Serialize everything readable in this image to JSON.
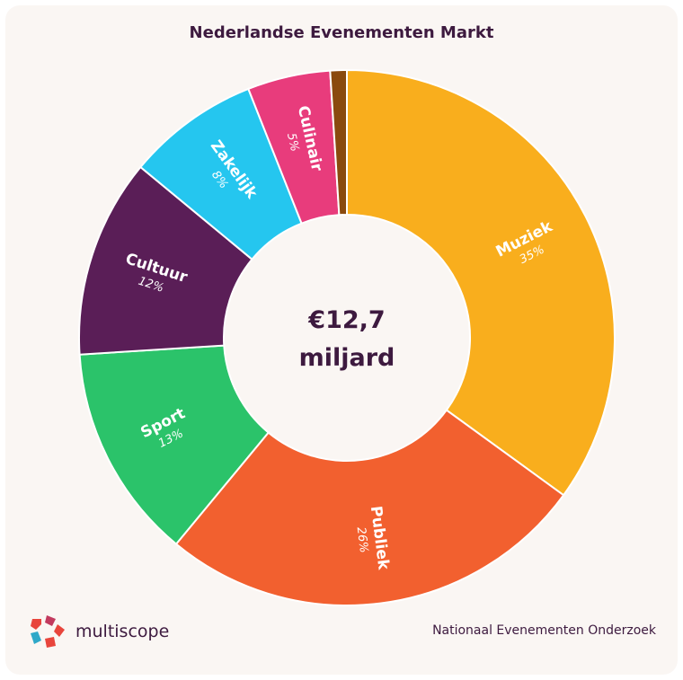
{
  "chart_data": {
    "type": "pie",
    "title": "Nederlandse Evenementen Markt",
    "center_label_lines": [
      "€12,7",
      "miljard"
    ],
    "slices": [
      {
        "label": "Muziek",
        "pct_label": "35%",
        "value": 35.0,
        "color": "#f9ae1d"
      },
      {
        "label": "Publiek",
        "pct_label": "26%",
        "value": 26.0,
        "color": "#f2602f"
      },
      {
        "label": "Sport",
        "pct_label": "13%",
        "value": 13.0,
        "color": "#2bc36a"
      },
      {
        "label": "Cultuur",
        "pct_label": "12%",
        "value": 12.0,
        "color": "#5a1e57"
      },
      {
        "label": "Zakelijk",
        "pct_label": "8%",
        "value": 8.0,
        "color": "#25c6ef"
      },
      {
        "label": "Culinair",
        "pct_label": "5%",
        "value": 5.0,
        "color": "#e83c7c"
      },
      {
        "label": "",
        "pct_label": "",
        "value": 1.0,
        "color": "#8a4a0e"
      }
    ]
  },
  "brand": {
    "name": "multiscope"
  },
  "source": "Nationaal Evenementen Onderzoek"
}
